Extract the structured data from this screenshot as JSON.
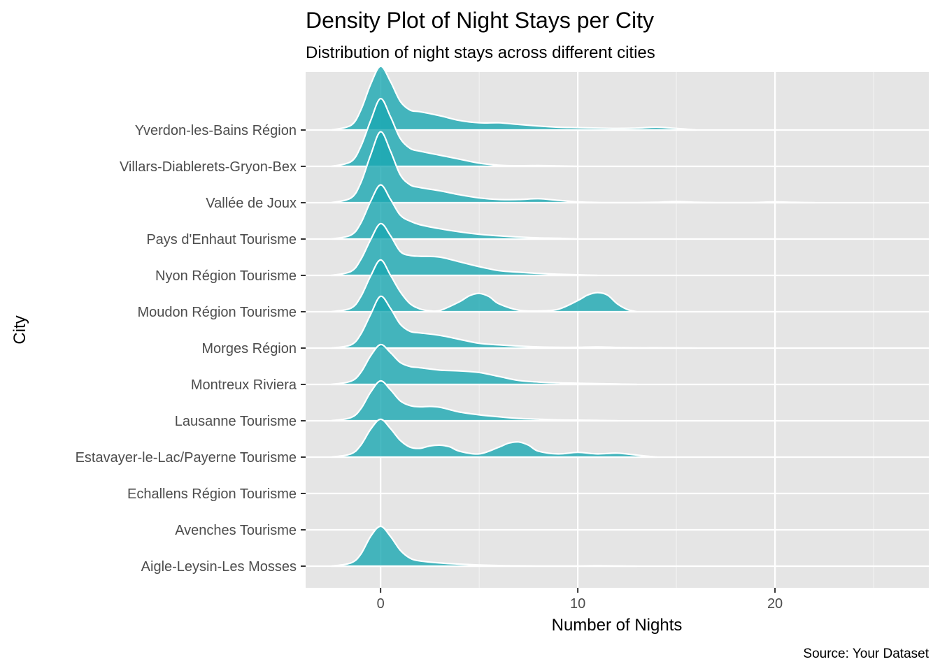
{
  "chart_data": {
    "type": "ridgeline-density",
    "title": "Density Plot of Night Stays per City",
    "subtitle": "Distribution of night stays across different cities",
    "xlabel": "Number of Nights",
    "ylabel": "City",
    "caption": "Source: Your Dataset",
    "xlim": [
      -3.8,
      27.8
    ],
    "x_ticks": [
      0,
      10,
      20
    ],
    "grid": true,
    "fill_color": "#1aa7b2",
    "fill_opacity": 0.8,
    "outline_color": "#ffffff",
    "panel_background": "#e5e5e5",
    "categories": [
      "Aigle-Leysin-Les Mosses",
      "Avenches Tourisme",
      "Echallens Région Tourisme",
      "Estavayer-le-Lac/Payerne Tourisme",
      "Lausanne Tourisme",
      "Montreux Riviera",
      "Morges Région",
      "Moudon Région Tourisme",
      "Nyon Région Tourisme",
      "Pays d'Enhaut Tourisme",
      "Vallée de Joux",
      "Villars-Diablerets-Gryon-Bex",
      "Yverdon-les-Bains Région"
    ],
    "series": [
      {
        "category": "Aigle-Leysin-Les Mosses",
        "x": [
          -2.5,
          -1.5,
          -1,
          -0.5,
          0,
          0.5,
          1,
          1.5,
          2,
          3,
          4,
          5,
          6,
          7,
          8,
          9,
          10,
          11,
          12,
          13
        ],
        "y": [
          0,
          0.08,
          0.3,
          0.75,
          1.0,
          0.75,
          0.4,
          0.2,
          0.13,
          0.08,
          0.05,
          0.03,
          0.015,
          0.008,
          0.004,
          0.002,
          0.004,
          0.01,
          0.006,
          0
        ]
      },
      {
        "category": "Avenches Tourisme",
        "x": [],
        "y": []
      },
      {
        "category": "Echallens Région Tourisme",
        "x": [],
        "y": []
      },
      {
        "category": "Estavayer-le-Lac/Payerne Tourisme",
        "x": [
          -2.5,
          -1.5,
          -1,
          -0.5,
          0,
          0.5,
          1,
          1.5,
          2,
          2.5,
          3,
          3.5,
          4,
          5,
          6,
          6.5,
          7,
          7.5,
          8,
          9,
          10,
          11,
          12,
          13,
          14
        ],
        "y": [
          0,
          0.08,
          0.3,
          0.7,
          0.95,
          0.72,
          0.42,
          0.25,
          0.22,
          0.28,
          0.3,
          0.26,
          0.15,
          0.08,
          0.25,
          0.35,
          0.38,
          0.3,
          0.15,
          0.08,
          0.12,
          0.08,
          0.1,
          0.05,
          0
        ]
      },
      {
        "category": "Lausanne Tourisme",
        "x": [
          -2.5,
          -1.5,
          -1,
          -0.5,
          0,
          0.5,
          1,
          1.5,
          2,
          2.5,
          3,
          3.5,
          4,
          5,
          6,
          7,
          8,
          9,
          10,
          11,
          12
        ],
        "y": [
          0,
          0.08,
          0.3,
          0.72,
          1.0,
          0.78,
          0.5,
          0.38,
          0.35,
          0.36,
          0.34,
          0.28,
          0.22,
          0.15,
          0.1,
          0.06,
          0.04,
          0.02,
          0.015,
          0.008,
          0
        ]
      },
      {
        "category": "Montreux Riviera",
        "x": [
          -2.5,
          -1.5,
          -1,
          -0.5,
          0,
          0.5,
          1,
          1.5,
          2,
          3,
          4,
          5,
          6,
          7,
          8,
          9,
          10,
          11,
          12,
          13
        ],
        "y": [
          0,
          0.08,
          0.3,
          0.72,
          1.0,
          0.8,
          0.55,
          0.45,
          0.42,
          0.36,
          0.34,
          0.3,
          0.2,
          0.1,
          0.06,
          0.04,
          0.03,
          0.02,
          0.01,
          0
        ]
      },
      {
        "category": "Morges Région",
        "x": [
          -2.5,
          -1.5,
          -1,
          -0.5,
          0,
          0.5,
          1,
          1.5,
          2,
          3,
          4,
          5,
          6,
          7,
          8,
          9,
          10,
          11,
          12,
          13,
          14,
          15,
          16
        ],
        "y": [
          0,
          0.08,
          0.35,
          0.85,
          1.3,
          1.0,
          0.6,
          0.42,
          0.38,
          0.32,
          0.22,
          0.12,
          0.08,
          0.05,
          0.03,
          0.02,
          0.02,
          0.03,
          0.015,
          0.008,
          0.008,
          0.005,
          0
        ]
      },
      {
        "category": "Moudon Région Tourisme",
        "x": [
          -2.5,
          -1.5,
          -1,
          -0.5,
          0,
          0.5,
          1,
          1.5,
          2,
          2.5,
          3,
          4,
          4.5,
          5,
          5.5,
          6,
          7,
          8,
          9,
          10,
          10.5,
          11,
          11.5,
          12,
          12.5,
          13
        ],
        "y": [
          0,
          0.09,
          0.38,
          0.9,
          1.3,
          0.92,
          0.5,
          0.2,
          0.07,
          0.025,
          0.03,
          0.25,
          0.4,
          0.46,
          0.38,
          0.2,
          0.04,
          0.02,
          0.06,
          0.28,
          0.42,
          0.48,
          0.42,
          0.2,
          0.06,
          0
        ]
      },
      {
        "category": "Nyon Région Tourisme",
        "x": [
          -2.5,
          -1.5,
          -1,
          -0.5,
          0,
          0.5,
          1,
          1.5,
          2,
          3,
          4,
          5,
          6,
          7,
          8,
          9,
          10,
          11
        ],
        "y": [
          0,
          0.1,
          0.4,
          0.9,
          1.3,
          1.0,
          0.6,
          0.5,
          0.48,
          0.46,
          0.34,
          0.22,
          0.12,
          0.08,
          0.05,
          0.03,
          0.015,
          0
        ]
      },
      {
        "category": "Pays d'Enhaut Tourisme",
        "x": [
          -2.5,
          -1.5,
          -1,
          -0.5,
          0,
          0.5,
          1,
          1.5,
          2,
          3,
          4,
          5,
          6,
          7,
          8,
          9,
          10
        ],
        "y": [
          0,
          0.1,
          0.4,
          0.95,
          1.36,
          1.0,
          0.6,
          0.45,
          0.36,
          0.26,
          0.18,
          0.12,
          0.08,
          0.05,
          0.03,
          0.02,
          0
        ]
      },
      {
        "category": "Vallée de Joux",
        "x": [
          -2.5,
          -1.5,
          -1,
          -0.5,
          0,
          0.5,
          1,
          1.5,
          2,
          3,
          4,
          5,
          6,
          7,
          8,
          9,
          10,
          11,
          12,
          13,
          14,
          15,
          16,
          17,
          18,
          19,
          20,
          21,
          22
        ],
        "y": [
          0,
          0.12,
          0.5,
          1.2,
          1.78,
          1.3,
          0.7,
          0.45,
          0.38,
          0.3,
          0.2,
          0.12,
          0.08,
          0.08,
          0.1,
          0.06,
          0.02,
          0.005,
          0.003,
          0.003,
          0.01,
          0.03,
          0.01,
          0.003,
          0.002,
          0.005,
          0.02,
          0.008,
          0
        ]
      },
      {
        "category": "Villars-Diablerets-Gryon-Bex",
        "x": [
          -2.5,
          -1.5,
          -1,
          -0.5,
          0,
          0.5,
          1,
          1.5,
          2,
          3,
          4,
          5,
          6,
          7,
          8,
          9,
          10
        ],
        "y": [
          0,
          0.12,
          0.5,
          1.15,
          1.7,
          1.25,
          0.7,
          0.45,
          0.38,
          0.28,
          0.18,
          0.08,
          0.03,
          0.015,
          0.02,
          0.01,
          0
        ]
      },
      {
        "category": "Yverdon-les-Bains Région",
        "x": [
          -2.5,
          -1.5,
          -1,
          -0.5,
          0,
          0.5,
          1,
          1.5,
          2,
          3,
          4,
          5,
          6,
          7,
          8,
          9,
          10,
          11,
          12,
          13,
          14,
          15,
          16
        ],
        "y": [
          0,
          0.12,
          0.5,
          1.15,
          1.6,
          1.22,
          0.72,
          0.5,
          0.46,
          0.36,
          0.24,
          0.18,
          0.18,
          0.14,
          0.1,
          0.07,
          0.06,
          0.05,
          0.04,
          0.05,
          0.07,
          0.04,
          0
        ]
      }
    ]
  }
}
